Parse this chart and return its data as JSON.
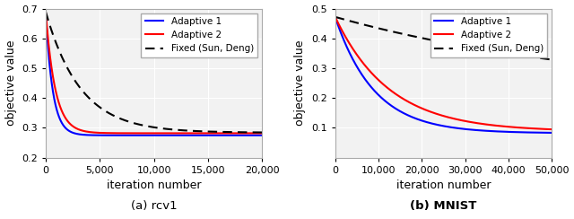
{
  "rcv1": {
    "xlim": [
      0,
      20000
    ],
    "ylim": [
      0.2,
      0.7
    ],
    "yticks": [
      0.2,
      0.3,
      0.4,
      0.5,
      0.6,
      0.7
    ],
    "xticks": [
      0,
      5000,
      10000,
      15000,
      20000
    ],
    "xlabel": "iteration number",
    "ylabel": "objective value",
    "caption": "(a) rcv1",
    "caption_bold": false,
    "adaptive1": {
      "color": "#0000ff",
      "label": "Adaptive 1"
    },
    "adaptive2": {
      "color": "#ff0000",
      "label": "Adaptive 2"
    },
    "fixed": {
      "color": "#000000",
      "label": "Fixed (Sun, Deng)",
      "linestyle": "--"
    },
    "curve_rcv1_a1": {
      "y0": 0.275,
      "y_start": 0.69,
      "tau": 650
    },
    "curve_rcv1_a2": {
      "y0": 0.282,
      "y_start": 0.69,
      "tau": 880
    },
    "curve_rcv1_fx": {
      "y0": 0.284,
      "y_start": 0.69,
      "tau": 3200
    }
  },
  "mnist": {
    "xlim": [
      0,
      50000
    ],
    "ylim": [
      0.0,
      0.5
    ],
    "yticks": [
      0.1,
      0.2,
      0.3,
      0.4,
      0.5
    ],
    "xticks": [
      0,
      10000,
      20000,
      30000,
      40000,
      50000
    ],
    "xlabel": "iteration number",
    "ylabel": "objective value",
    "caption": "(b) MNIST",
    "caption_bold": true,
    "adaptive1": {
      "color": "#0000ff",
      "label": "Adaptive 1"
    },
    "adaptive2": {
      "color": "#ff0000",
      "label": "Adaptive 2"
    },
    "fixed": {
      "color": "#000000",
      "label": "Fixed (Sun, Deng)",
      "linestyle": "--"
    },
    "curve_mnist_a1": {
      "y0": 0.082,
      "y_start": 0.472,
      "tau": 9000
    },
    "curve_mnist_a2": {
      "y0": 0.088,
      "y_start": 0.472,
      "tau": 12500
    },
    "curve_mnist_fx": {
      "y0": 0.205,
      "y_start": 0.472,
      "tau": 65000
    }
  },
  "bg_color": "#f2f2f2",
  "grid_color": "#ffffff",
  "legend_fontsize": 7.5,
  "tick_fontsize": 8,
  "label_fontsize": 9,
  "caption_fontsize": 9.5,
  "linewidth": 1.5
}
